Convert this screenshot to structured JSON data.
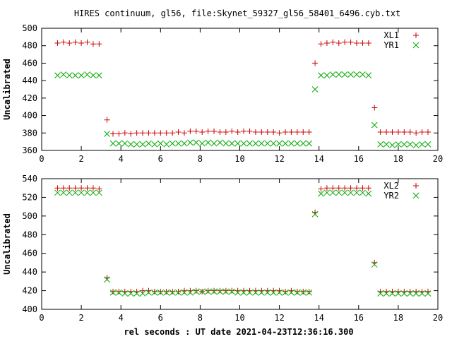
{
  "title": "HIRES continuum, gl56, file:Skynet_59327_gl56_58401_6496.cyb.txt",
  "xlabel": "rel seconds : UT date 2021-04-23T12:36:16.300",
  "colors": {
    "XL": "#cc0000",
    "YR": "#00aa00",
    "axis": "#000000"
  },
  "chart_data": [
    {
      "type": "scatter",
      "ylabel": "Uncalibrated",
      "xlim": [
        0,
        20
      ],
      "ylim": [
        360,
        500
      ],
      "xticks": [
        0,
        2,
        4,
        6,
        8,
        10,
        12,
        14,
        16,
        18,
        20
      ],
      "yticks": [
        360,
        380,
        400,
        420,
        440,
        460,
        480,
        500
      ],
      "legend_position": "top-right",
      "series": [
        {
          "name": "XL1",
          "marker": "plus",
          "color": "#cc0000",
          "x": [
            0.8,
            1.1,
            1.4,
            1.7,
            2.0,
            2.3,
            2.6,
            2.9,
            3.3,
            3.6,
            3.9,
            4.2,
            4.5,
            4.8,
            5.1,
            5.4,
            5.7,
            6.0,
            6.3,
            6.6,
            6.9,
            7.2,
            7.5,
            7.8,
            8.1,
            8.4,
            8.7,
            9.0,
            9.3,
            9.6,
            9.9,
            10.2,
            10.5,
            10.8,
            11.1,
            11.4,
            11.7,
            12.0,
            12.3,
            12.6,
            12.9,
            13.2,
            13.5,
            13.8,
            14.1,
            14.4,
            14.7,
            15.0,
            15.3,
            15.6,
            15.9,
            16.2,
            16.5,
            16.8,
            17.1,
            17.4,
            17.7,
            18.0,
            18.3,
            18.6,
            18.9,
            19.2,
            19.5
          ],
          "y": [
            483,
            484,
            483,
            484,
            483,
            484,
            482,
            482,
            395,
            379,
            379,
            380,
            379,
            380,
            380,
            380,
            380,
            380,
            380,
            380,
            381,
            380,
            382,
            382,
            381,
            382,
            382,
            381,
            381,
            382,
            381,
            382,
            382,
            381,
            381,
            381,
            381,
            380,
            381,
            381,
            381,
            381,
            381,
            460,
            482,
            483,
            484,
            483,
            484,
            484,
            483,
            483,
            483,
            409,
            381,
            381,
            381,
            381,
            381,
            381,
            380,
            381,
            381
          ]
        },
        {
          "name": "YR1",
          "marker": "cross",
          "color": "#00aa00",
          "x": [
            0.8,
            1.1,
            1.4,
            1.7,
            2.0,
            2.3,
            2.6,
            2.9,
            3.3,
            3.6,
            3.9,
            4.2,
            4.5,
            4.8,
            5.1,
            5.4,
            5.7,
            6.0,
            6.3,
            6.6,
            6.9,
            7.2,
            7.5,
            7.8,
            8.1,
            8.4,
            8.7,
            9.0,
            9.3,
            9.6,
            9.9,
            10.2,
            10.5,
            10.8,
            11.1,
            11.4,
            11.7,
            12.0,
            12.3,
            12.6,
            12.9,
            13.2,
            13.5,
            13.8,
            14.1,
            14.4,
            14.7,
            15.0,
            15.3,
            15.6,
            15.9,
            16.2,
            16.5,
            16.8,
            17.1,
            17.4,
            17.7,
            18.0,
            18.3,
            18.6,
            18.9,
            19.2,
            19.5
          ],
          "y": [
            446,
            447,
            446,
            446,
            446,
            447,
            446,
            446,
            379,
            368,
            368,
            368,
            367,
            367,
            367,
            368,
            367,
            368,
            367,
            368,
            368,
            368,
            369,
            369,
            368,
            369,
            368,
            369,
            368,
            368,
            368,
            368,
            368,
            368,
            368,
            368,
            368,
            368,
            368,
            368,
            368,
            368,
            368,
            430,
            446,
            446,
            447,
            447,
            447,
            447,
            447,
            447,
            446,
            389,
            367,
            367,
            366,
            367,
            367,
            367,
            366,
            367,
            367
          ]
        }
      ]
    },
    {
      "type": "scatter",
      "ylabel": "Uncalibrated",
      "xlabel": "rel seconds : UT date 2021-04-23T12:36:16.300",
      "xlim": [
        0,
        20
      ],
      "ylim": [
        400,
        540
      ],
      "xticks": [
        0,
        2,
        4,
        6,
        8,
        10,
        12,
        14,
        16,
        18,
        20
      ],
      "yticks": [
        400,
        420,
        440,
        460,
        480,
        500,
        520,
        540
      ],
      "legend_position": "top-right",
      "series": [
        {
          "name": "XL2",
          "marker": "plus",
          "color": "#cc0000",
          "x": [
            0.8,
            1.1,
            1.4,
            1.7,
            2.0,
            2.3,
            2.6,
            2.9,
            3.3,
            3.6,
            3.9,
            4.2,
            4.5,
            4.8,
            5.1,
            5.4,
            5.7,
            6.0,
            6.3,
            6.6,
            6.9,
            7.2,
            7.5,
            7.8,
            8.1,
            8.4,
            8.7,
            9.0,
            9.3,
            9.6,
            9.9,
            10.2,
            10.5,
            10.8,
            11.1,
            11.4,
            11.7,
            12.0,
            12.3,
            12.6,
            12.9,
            13.2,
            13.5,
            13.8,
            14.1,
            14.4,
            14.7,
            15.0,
            15.3,
            15.6,
            15.9,
            16.2,
            16.5,
            16.8,
            17.1,
            17.4,
            17.7,
            18.0,
            18.3,
            18.6,
            18.9,
            19.2,
            19.5
          ],
          "y": [
            530,
            530,
            530,
            530,
            530,
            530,
            530,
            529,
            434,
            419,
            419,
            419,
            419,
            419,
            420,
            420,
            419,
            419,
            419,
            419,
            419,
            420,
            420,
            420,
            419,
            420,
            420,
            420,
            420,
            420,
            420,
            420,
            420,
            420,
            420,
            420,
            420,
            420,
            419,
            420,
            419,
            419,
            419,
            504,
            529,
            530,
            530,
            530,
            530,
            530,
            530,
            530,
            530,
            450,
            419,
            419,
            419,
            419,
            419,
            419,
            419,
            419,
            419
          ]
        },
        {
          "name": "YR2",
          "marker": "cross",
          "color": "#00aa00",
          "x": [
            0.8,
            1.1,
            1.4,
            1.7,
            2.0,
            2.3,
            2.6,
            2.9,
            3.3,
            3.6,
            3.9,
            4.2,
            4.5,
            4.8,
            5.1,
            5.4,
            5.7,
            6.0,
            6.3,
            6.6,
            6.9,
            7.2,
            7.5,
            7.8,
            8.1,
            8.4,
            8.7,
            9.0,
            9.3,
            9.6,
            9.9,
            10.2,
            10.5,
            10.8,
            11.1,
            11.4,
            11.7,
            12.0,
            12.3,
            12.6,
            12.9,
            13.2,
            13.5,
            13.8,
            14.1,
            14.4,
            14.7,
            15.0,
            15.3,
            15.6,
            15.9,
            16.2,
            16.5,
            16.8,
            17.1,
            17.4,
            17.7,
            18.0,
            18.3,
            18.6,
            18.9,
            19.2,
            19.5
          ],
          "y": [
            525,
            525,
            525,
            525,
            525,
            525,
            525,
            525,
            432,
            418,
            418,
            417,
            417,
            417,
            417,
            418,
            418,
            418,
            418,
            418,
            418,
            418,
            418,
            419,
            419,
            419,
            419,
            419,
            419,
            419,
            418,
            418,
            418,
            418,
            418,
            418,
            418,
            418,
            418,
            418,
            418,
            418,
            418,
            502,
            524,
            525,
            525,
            525,
            525,
            525,
            525,
            525,
            524,
            448,
            417,
            417,
            417,
            417,
            417,
            417,
            417,
            417,
            417
          ]
        }
      ]
    }
  ]
}
